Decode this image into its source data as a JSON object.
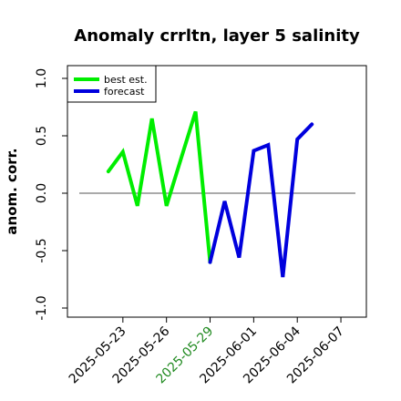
{
  "chart_data": {
    "type": "line",
    "title": "Anomaly crrltn, layer 5 salinity",
    "ylabel": "anom. corr.",
    "xlabel": "",
    "ylim": [
      -1.0,
      1.0
    ],
    "yticks": [
      "-1.0",
      "-0.5",
      "0.0",
      "0.5",
      "1.0"
    ],
    "xlim": [
      "2025-05-20",
      "2025-06-08"
    ],
    "xticks": [
      {
        "label": "2025-05-23",
        "color": "#000000"
      },
      {
        "label": "2025-05-26",
        "color": "#000000"
      },
      {
        "label": "2025-05-29",
        "color": "#228B22"
      },
      {
        "label": "2025-06-01",
        "color": "#000000"
      },
      {
        "label": "2025-06-04",
        "color": "#000000"
      },
      {
        "label": "2025-06-07",
        "color": "#000000"
      }
    ],
    "reference_line": 0.0,
    "grid": false,
    "legend_position": "top-left",
    "series": [
      {
        "name": "best est.",
        "color": "#00ee00",
        "x": [
          "2025-05-22",
          "2025-05-23",
          "2025-05-24",
          "2025-05-25",
          "2025-05-26",
          "2025-05-27",
          "2025-05-28",
          "2025-05-29"
        ],
        "y": [
          0.19,
          0.36,
          -0.11,
          0.65,
          -0.11,
          0.3,
          0.71,
          -0.6
        ]
      },
      {
        "name": "forecast",
        "color": "#0000dd",
        "x": [
          "2025-05-29",
          "2025-05-30",
          "2025-05-31",
          "2025-06-01",
          "2025-06-02",
          "2025-06-03",
          "2025-06-04",
          "2025-06-05"
        ],
        "y": [
          -0.6,
          -0.07,
          -0.56,
          0.37,
          0.42,
          -0.73,
          0.47,
          0.6
        ]
      }
    ]
  }
}
